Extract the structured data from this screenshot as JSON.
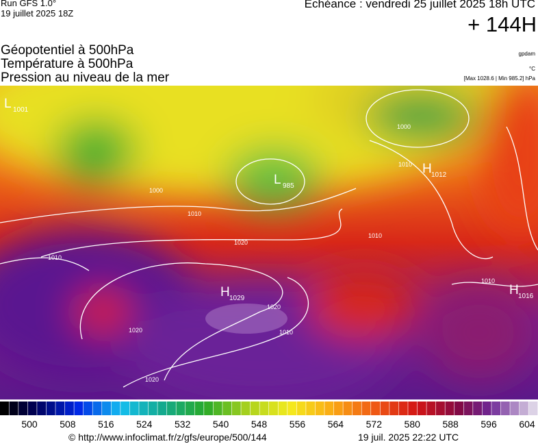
{
  "header": {
    "run": "Run GFS 1.0°",
    "run_date": "19 juillet 2025 18Z",
    "echeance": "Echéance : vendredi 25 juillet 2025 18h UTC",
    "lead": "+ 144H",
    "fields": [
      "Géopotentiel à 500hPa",
      "Température à 500hPa",
      "Pression au niveau de la mer"
    ],
    "units": [
      "gpdam",
      "°C"
    ],
    "range": "[Max 1028.6 | Min 985.2] hPa"
  },
  "map": {
    "centers": [
      {
        "letter": "L",
        "value": "1001"
      },
      {
        "letter": "L",
        "value": "985"
      },
      {
        "letter": "H",
        "value": "1029"
      },
      {
        "letter": "H",
        "value": "1012"
      },
      {
        "letter": "H",
        "value": "1016"
      }
    ],
    "isobar_labels": [
      "1000",
      "1010",
      "1020",
      "1010",
      "1020",
      "1020",
      "1020",
      "1010",
      "1010",
      "1000",
      "1010",
      "1010"
    ]
  },
  "colorbar": {
    "labels": [
      "500",
      "508",
      "516",
      "524",
      "532",
      "540",
      "548",
      "556",
      "564",
      "572",
      "580",
      "588",
      "596",
      "604"
    ]
  },
  "footer": {
    "url": "© http://www.infoclimat.fr/z/gfs/europe/500/144",
    "date": "19 juil. 2025 22:22 UTC"
  }
}
